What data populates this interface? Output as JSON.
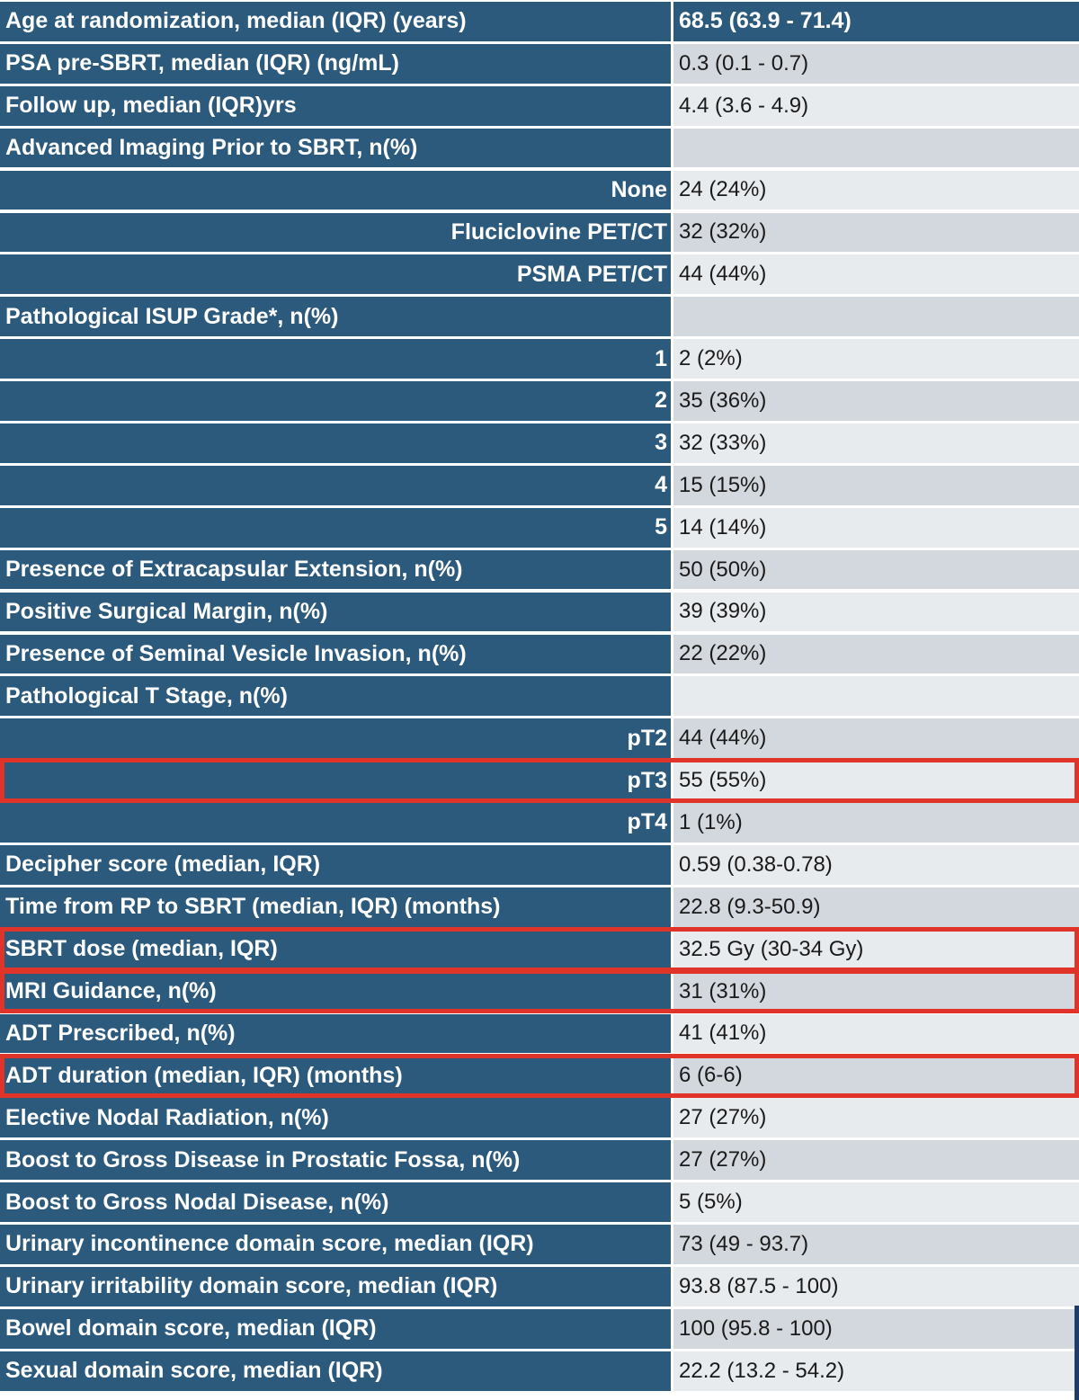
{
  "rows": [
    {
      "label": "Age at randomization, median (IQR) (years)",
      "value": "68.5 (63.9 - 71.4)",
      "sub": false,
      "header": true
    },
    {
      "label": "PSA pre-SBRT, median (IQR) (ng/mL)",
      "value": "0.3 (0.1 - 0.7)",
      "sub": false
    },
    {
      "label": "Follow up, median (IQR)yrs",
      "value": "4.4 (3.6 - 4.9)",
      "sub": false
    },
    {
      "label": "Advanced Imaging Prior to SBRT, n(%)",
      "value": "",
      "sub": false
    },
    {
      "label": "None",
      "value": "24 (24%)",
      "sub": true
    },
    {
      "label": "Fluciclovine PET/CT",
      "value": "32 (32%)",
      "sub": true
    },
    {
      "label": "PSMA PET/CT",
      "value": "44 (44%)",
      "sub": true
    },
    {
      "label": "Pathological ISUP Grade*, n(%)",
      "value": "",
      "sub": false
    },
    {
      "label": "1",
      "value": "2 (2%)",
      "sub": true
    },
    {
      "label": "2",
      "value": "35 (36%)",
      "sub": true
    },
    {
      "label": "3",
      "value": "32 (33%)",
      "sub": true
    },
    {
      "label": "4",
      "value": "15 (15%)",
      "sub": true
    },
    {
      "label": "5",
      "value": " 14 (14%)",
      "sub": true
    },
    {
      "label": "Presence of Extracapsular Extension, n(%)",
      "value": "50 (50%)",
      "sub": false
    },
    {
      "label": "Positive Surgical Margin, n(%)",
      "value": "39 (39%)",
      "sub": false
    },
    {
      "label": "Presence of Seminal Vesicle Invasion, n(%)",
      "value": "22 (22%)",
      "sub": false
    },
    {
      "label": "Pathological T Stage, n(%)",
      "value": "",
      "sub": false
    },
    {
      "label": "pT2",
      "value": "44 (44%)",
      "sub": true
    },
    {
      "label": "pT3",
      "value": "55 (55%)",
      "sub": true,
      "highlighted": true
    },
    {
      "label": "pT4",
      "value": "1 (1%)",
      "sub": true
    },
    {
      "label": "Decipher score (median, IQR)",
      "value": "0.59 (0.38-0.78)",
      "sub": false
    },
    {
      "label": "Time from RP to SBRT (median, IQR) (months)",
      "value": "22.8 (9.3-50.9)",
      "sub": false
    },
    {
      "label": "SBRT dose (median, IQR)",
      "value": "32.5 Gy (30-34 Gy)",
      "sub": false,
      "highlighted": true
    },
    {
      "label": "MRI Guidance, n(%)",
      "value": "31 (31%)",
      "sub": false,
      "highlighted": true
    },
    {
      "label": "ADT Prescribed, n(%)",
      "value": "41 (41%)",
      "sub": false
    },
    {
      "label": "ADT duration (median, IQR) (months)",
      "value": "6 (6-6)",
      "sub": false,
      "highlighted": true
    },
    {
      "label": "Elective Nodal Radiation, n(%)",
      "value": "27 (27%)",
      "sub": false
    },
    {
      "label": "Boost to Gross Disease in Prostatic Fossa, n(%)",
      "value": "27 (27%)",
      "sub": false
    },
    {
      "label": "Boost to Gross Nodal Disease, n(%)",
      "value": "5 (5%)",
      "sub": false
    },
    {
      "label": "Urinary incontinence domain score, median (IQR)",
      "value": "73 (49 - 93.7)",
      "sub": false
    },
    {
      "label": "Urinary irritability domain score, median (IQR)",
      "value": "93.8 (87.5 - 100)",
      "sub": false
    },
    {
      "label": "Bowel domain score, median (IQR)",
      "value": "100 (95.8 - 100)",
      "sub": false
    },
    {
      "label": "Sexual domain score, median (IQR)",
      "value": "22.2 (13.2 - 54.2)",
      "sub": false
    }
  ],
  "colors": {
    "label_background": "#2c5a7d",
    "value_background_dark": "#d3d8de",
    "value_background_light": "#e8ebee",
    "highlight_border": "#e0342a"
  }
}
